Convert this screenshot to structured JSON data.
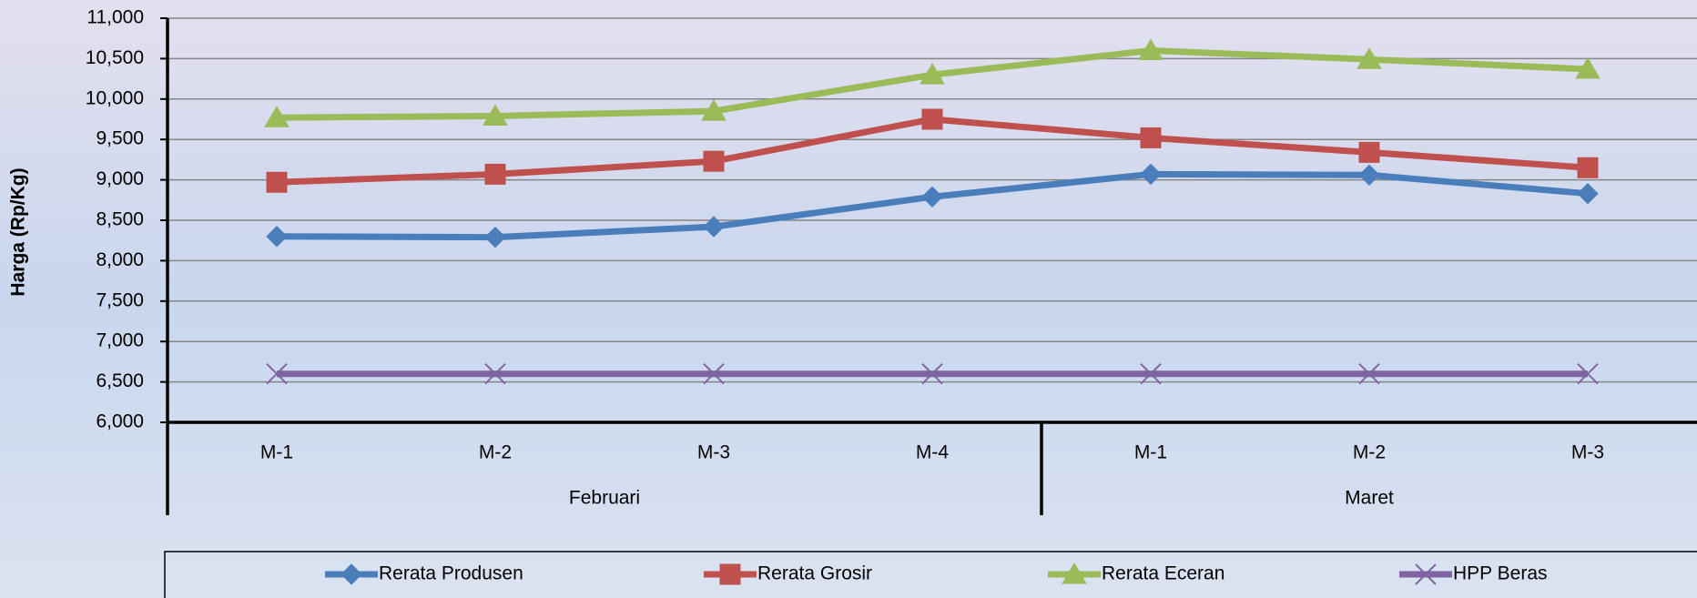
{
  "chart_data": {
    "type": "line",
    "y_label": "Harga (Rp/Kg)",
    "categories": [
      "M-1",
      "M-2",
      "M-3",
      "M-4",
      "M-1",
      "M-2",
      "M-3"
    ],
    "groups": [
      {
        "label": "Februari",
        "span": 4
      },
      {
        "label": "Maret",
        "span": 3
      }
    ],
    "series": [
      {
        "name": "Rerata Produsen",
        "color": "#4a7ebb",
        "marker": "diamond",
        "values": [
          8300,
          8290,
          8420,
          8790,
          9070,
          9060,
          8830
        ]
      },
      {
        "name": "Rerata Grosir",
        "color": "#c0504d",
        "marker": "square",
        "values": [
          8970,
          9070,
          9230,
          9750,
          9520,
          9340,
          9150
        ]
      },
      {
        "name": "Rerata Eceran",
        "color": "#9bbb59",
        "marker": "triangle",
        "values": [
          9770,
          9790,
          9850,
          10300,
          10600,
          10490,
          10370
        ]
      },
      {
        "name": "HPP Beras",
        "color": "#8064a2",
        "marker": "x",
        "values": [
          6600,
          6600,
          6600,
          6600,
          6600,
          6600,
          6600
        ]
      }
    ],
    "ylim": [
      6000,
      11000
    ],
    "yticks": [
      {
        "value": 6000,
        "label": "6,000"
      },
      {
        "value": 6500,
        "label": "6,500"
      },
      {
        "value": 7000,
        "label": "7,000"
      },
      {
        "value": 7500,
        "label": "7,500"
      },
      {
        "value": 8000,
        "label": "8,000"
      },
      {
        "value": 8500,
        "label": "8,500"
      },
      {
        "value": 9000,
        "label": "9,000"
      },
      {
        "value": 9500,
        "label": "9,500"
      },
      {
        "value": 10000,
        "label": "10,000"
      },
      {
        "value": 10500,
        "label": "10,500"
      },
      {
        "value": 11000,
        "label": "11,000"
      }
    ],
    "grid": true
  }
}
